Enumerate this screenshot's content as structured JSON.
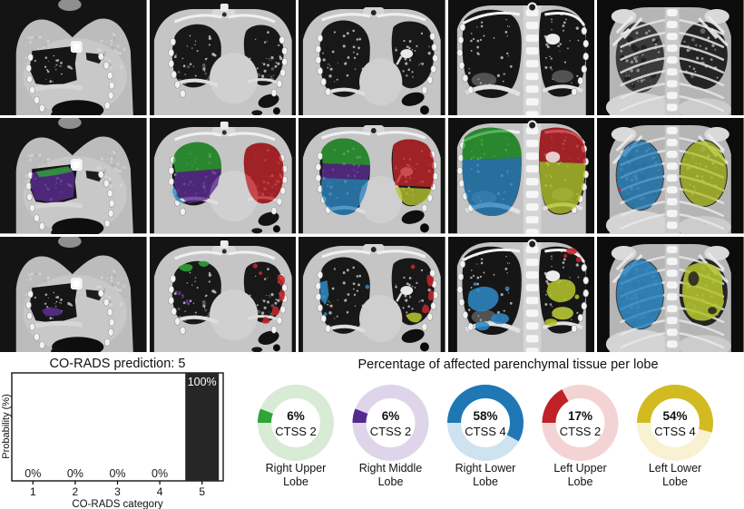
{
  "chart_data": [
    {
      "type": "bar",
      "title": "CO-RADS prediction: 5",
      "xlabel": "CO-RADS category",
      "ylabel": "Probability (%)",
      "categories": [
        "1",
        "2",
        "3",
        "4",
        "5"
      ],
      "values": [
        0,
        0,
        0,
        0,
        100
      ],
      "value_labels": [
        "0%",
        "0%",
        "0%",
        "0%",
        "100%"
      ],
      "ylim": [
        0,
        100
      ],
      "grid": false,
      "legend": "none",
      "bar_color": "#262626",
      "axis_color": "#000000"
    },
    {
      "type": "pie",
      "variant": "donut",
      "title": "Percentage of affected parenchymal tissue per lobe",
      "donuts": [
        {
          "label": "Right Upper Lobe",
          "percent": 6,
          "center_text": [
            "6%",
            "CTSS 2"
          ],
          "color": "#2fa437",
          "track_color": "#d7ebd5"
        },
        {
          "label": "Right Middle Lobe",
          "percent": 6,
          "center_text": [
            "6%",
            "CTSS 2"
          ],
          "color": "#552a8f",
          "track_color": "#ded5ea"
        },
        {
          "label": "Right Lower Lobe",
          "percent": 58,
          "center_text": [
            "58%",
            "CTSS 4"
          ],
          "color": "#1f77b4",
          "track_color": "#cfe2f0"
        },
        {
          "label": "Left Upper Lobe",
          "percent": 17,
          "center_text": [
            "17%",
            "CTSS 2"
          ],
          "color": "#c02128",
          "track_color": "#f4d3d5"
        },
        {
          "label": "Left Lower Lobe",
          "percent": 54,
          "center_text": [
            "54%",
            "CTSS 4"
          ],
          "color": "#d2bb20",
          "track_color": "#f8f2d3"
        }
      ]
    }
  ],
  "ct_panel": {
    "rows": [
      {
        "name": "original-ct"
      },
      {
        "name": "lobe-segmentation-overlay"
      },
      {
        "name": "abnormality-segmentation-overlay"
      }
    ],
    "columns": 5,
    "lobe_colors": {
      "right-upper": "#2fa437",
      "right-middle": "#5c2d91",
      "right-lower": "#2e86c1",
      "left-upper": "#c2262a",
      "left-lower": "#b4c32d"
    }
  }
}
